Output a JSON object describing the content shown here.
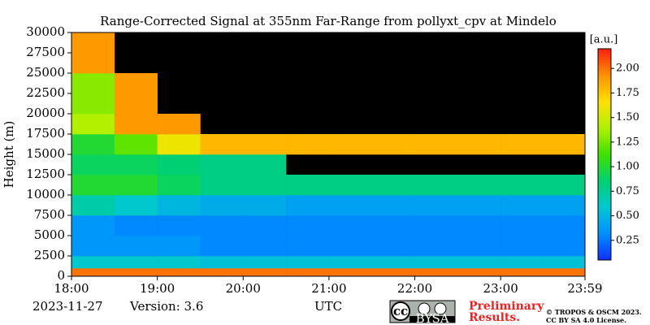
{
  "chart_data": {
    "type": "heatmap",
    "title": "Range-Corrected Signal at 355nm Far-Range from pollyxt_cpv at Mindelo",
    "ylabel": "Height (m)",
    "xlabel": "UTC",
    "date": "2023-11-27",
    "version": "Version: 3.6",
    "colorbar_label": "[a.u.]",
    "notice": [
      "Preliminary",
      "Results."
    ],
    "copyright": [
      "© TROPOS & OSCM 2023.",
      "CC BY SA 4.0 License."
    ],
    "badge": [
      "cc",
      "BY",
      "SA"
    ],
    "xlim": [
      18,
      23.983
    ],
    "xticks": [
      {
        "value": 18,
        "label": "18:00"
      },
      {
        "value": 19,
        "label": "19:00"
      },
      {
        "value": 20,
        "label": "20:00"
      },
      {
        "value": 21,
        "label": "21:00"
      },
      {
        "value": 22,
        "label": "22:00"
      },
      {
        "value": 23,
        "label": "23:00"
      },
      {
        "value": 23.983,
        "label": "23:59"
      }
    ],
    "ylim": [
      0,
      30000
    ],
    "yticks": [
      0,
      2500,
      5000,
      7500,
      10000,
      12500,
      15000,
      17500,
      20000,
      22500,
      25000,
      27500,
      30000
    ],
    "clim": [
      0.05,
      2.2
    ],
    "cticks": [
      0.25,
      {
        "value": 0.5,
        "label": "0.50"
      },
      0.75,
      {
        "value": 1,
        "label": "1.00"
      },
      1.25,
      {
        "value": 1.5,
        "label": "1.50"
      },
      1.75,
      {
        "value": 2,
        "label": "2.00"
      }
    ],
    "colormap": [
      "#1030ff",
      "#0090ff",
      "#00c8d0",
      "#00d070",
      "#40e000",
      "#b0f000",
      "#ffe000",
      "#ff9000",
      "#ff2010"
    ],
    "background": "#000000",
    "x_bins": [
      18,
      18.5,
      19,
      19.5,
      20,
      20.5,
      21,
      21.5,
      22,
      22.5,
      23,
      23.5,
      23.983
    ],
    "y_bins": [
      0,
      1000,
      2500,
      5000,
      7500,
      10000,
      12500,
      15000,
      17500,
      20000,
      25000,
      30000
    ],
    "z": [
      [
        2.0,
        2.0,
        2.0,
        2.0,
        2.0,
        2.0,
        2.0,
        2.0,
        2.0,
        2.0,
        2.0,
        2.0
      ],
      [
        0.6,
        0.6,
        0.6,
        0.55,
        0.55,
        0.55,
        0.55,
        0.55,
        0.55,
        0.55,
        0.55,
        0.55
      ],
      [
        0.35,
        0.35,
        0.35,
        0.3,
        0.3,
        0.3,
        0.3,
        0.3,
        0.3,
        0.3,
        0.3,
        0.3
      ],
      [
        0.35,
        0.3,
        0.3,
        0.3,
        0.3,
        0.3,
        0.3,
        0.3,
        0.3,
        0.3,
        0.3,
        0.3
      ],
      [
        0.7,
        0.6,
        0.5,
        0.45,
        0.45,
        0.4,
        0.4,
        0.4,
        0.4,
        0.4,
        0.4,
        0.4
      ],
      [
        1.0,
        1.0,
        0.9,
        0.8,
        0.8,
        0.8,
        0.8,
        0.8,
        0.8,
        0.8,
        0.8,
        0.8
      ],
      [
        0.9,
        0.9,
        0.85,
        0.8,
        0.8,
        null,
        null,
        null,
        null,
        null,
        null,
        null
      ],
      [
        1.0,
        1.2,
        1.6,
        1.8,
        1.8,
        1.8,
        1.8,
        1.8,
        1.8,
        1.8,
        1.8,
        1.8
      ],
      [
        1.4,
        1.9,
        1.9,
        null,
        null,
        null,
        null,
        null,
        null,
        null,
        null,
        null
      ],
      [
        1.3,
        1.9,
        null,
        null,
        null,
        null,
        null,
        null,
        null,
        null,
        null,
        null
      ],
      [
        1.9,
        null,
        null,
        null,
        null,
        null,
        null,
        null,
        null,
        null,
        null,
        null
      ]
    ]
  }
}
